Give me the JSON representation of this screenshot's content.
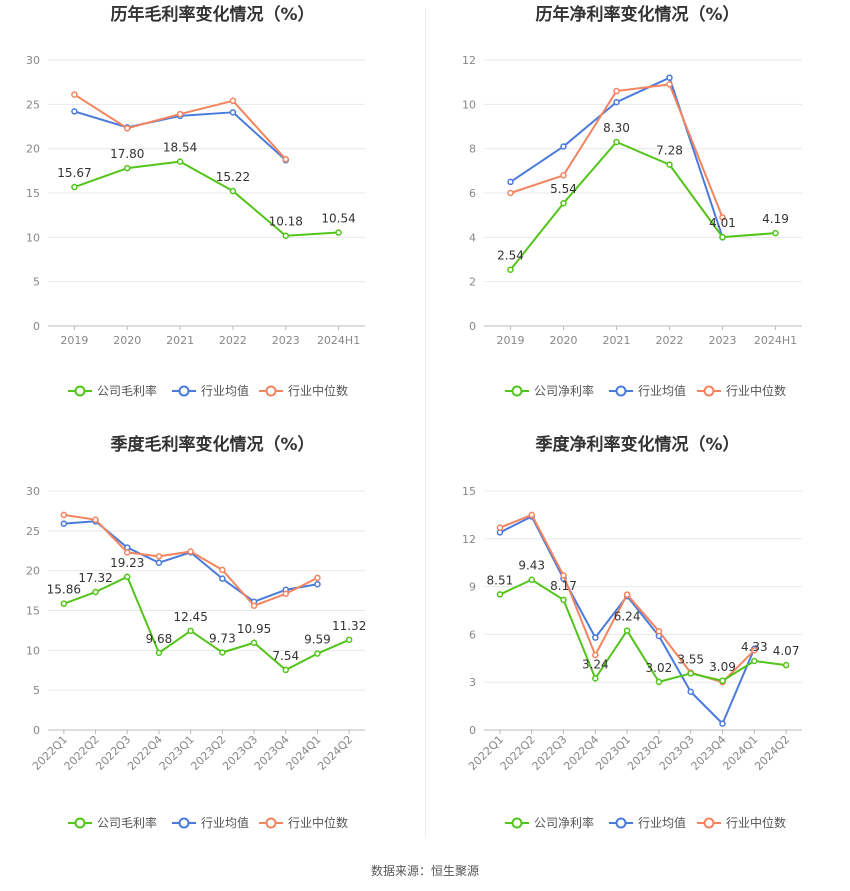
{
  "colors": {
    "company": "#52c41a",
    "avg": "#4a7bdc",
    "median": "#f4845f",
    "grid": "#e8e8e8",
    "axis": "#888888",
    "label": "#333333"
  },
  "source": "数据来源：恒生聚源",
  "chart_data": [
    {
      "type": "line",
      "title": "历年毛利率变化情况（%）",
      "categories": [
        "2019",
        "2020",
        "2021",
        "2022",
        "2023",
        "2024H1"
      ],
      "ylim": [
        0,
        30
      ],
      "yticks": [
        0,
        5,
        10,
        15,
        20,
        25,
        30
      ],
      "xtick_rotate": false,
      "series": [
        {
          "name": "公司毛利率",
          "key": "company",
          "values": [
            15.67,
            17.8,
            18.54,
            15.22,
            10.18,
            10.54
          ],
          "labels": [
            "15.67",
            "17.80",
            "18.54",
            "15.22",
            "10.18",
            "10.54"
          ]
        },
        {
          "name": "行业均值",
          "key": "avg",
          "values": [
            24.2,
            22.4,
            23.7,
            24.1,
            18.7,
            null
          ]
        },
        {
          "name": "行业中位数",
          "key": "median",
          "values": [
            26.1,
            22.3,
            23.9,
            25.4,
            18.8,
            null
          ]
        }
      ]
    },
    {
      "type": "line",
      "title": "历年净利率变化情况（%）",
      "categories": [
        "2019",
        "2020",
        "2021",
        "2022",
        "2023",
        "2024H1"
      ],
      "ylim": [
        0,
        12
      ],
      "yticks": [
        0,
        2,
        4,
        6,
        8,
        10,
        12
      ],
      "xtick_rotate": false,
      "series": [
        {
          "name": "公司净利率",
          "key": "company",
          "values": [
            2.54,
            5.54,
            8.3,
            7.28,
            4.01,
            4.19
          ],
          "labels": [
            "2.54",
            "5.54",
            "8.30",
            "7.28",
            "4.01",
            "4.19"
          ]
        },
        {
          "name": "行业均值",
          "key": "avg",
          "values": [
            6.5,
            8.1,
            10.1,
            11.2,
            4.0,
            null
          ]
        },
        {
          "name": "行业中位数",
          "key": "median",
          "values": [
            6.0,
            6.8,
            10.6,
            10.9,
            4.9,
            null
          ]
        }
      ]
    },
    {
      "type": "line",
      "title": "季度毛利率变化情况（%）",
      "categories": [
        "2022Q1",
        "2022Q2",
        "2022Q3",
        "2022Q4",
        "2023Q1",
        "2023Q2",
        "2023Q3",
        "2023Q4",
        "2024Q1",
        "2024Q2"
      ],
      "ylim": [
        0,
        30
      ],
      "yticks": [
        0,
        5,
        10,
        15,
        20,
        25,
        30
      ],
      "xtick_rotate": true,
      "series": [
        {
          "name": "公司毛利率",
          "key": "company",
          "values": [
            15.86,
            17.32,
            19.23,
            9.68,
            12.45,
            9.73,
            10.95,
            7.54,
            9.59,
            11.32
          ],
          "labels": [
            "15.86",
            "17.32",
            "19.23",
            "9.68",
            "12.45",
            "9.73",
            "10.95",
            "7.54",
            "9.59",
            "11.32"
          ]
        },
        {
          "name": "行业均值",
          "key": "avg",
          "values": [
            25.9,
            26.2,
            22.9,
            21.0,
            22.3,
            19.0,
            16.1,
            17.6,
            18.3,
            null
          ]
        },
        {
          "name": "行业中位数",
          "key": "median",
          "values": [
            27.0,
            26.4,
            22.3,
            21.8,
            22.4,
            20.1,
            15.6,
            17.1,
            19.1,
            null
          ]
        }
      ]
    },
    {
      "type": "line",
      "title": "季度净利率变化情况（%）",
      "categories": [
        "2022Q1",
        "2022Q2",
        "2022Q3",
        "2022Q4",
        "2023Q1",
        "2023Q2",
        "2023Q3",
        "2023Q4",
        "2024Q1",
        "2024Q2"
      ],
      "ylim": [
        0,
        15
      ],
      "yticks": [
        0,
        3,
        6,
        9,
        12,
        15
      ],
      "xtick_rotate": true,
      "series": [
        {
          "name": "公司净利率",
          "key": "company",
          "values": [
            8.51,
            9.43,
            8.17,
            3.24,
            6.24,
            3.02,
            3.55,
            3.09,
            4.33,
            4.07
          ],
          "labels": [
            "8.51",
            "9.43",
            "8.17",
            "3.24",
            "6.24",
            "3.02",
            "3.55",
            "3.09",
            "4.33",
            "4.07"
          ]
        },
        {
          "name": "行业均值",
          "key": "avg",
          "values": [
            12.4,
            13.4,
            9.5,
            5.8,
            8.4,
            5.9,
            2.4,
            0.4,
            5.1,
            null
          ]
        },
        {
          "name": "行业中位数",
          "key": "median",
          "values": [
            12.7,
            13.5,
            9.7,
            4.7,
            8.5,
            6.2,
            3.6,
            3.0,
            5.0,
            null
          ]
        }
      ]
    }
  ]
}
